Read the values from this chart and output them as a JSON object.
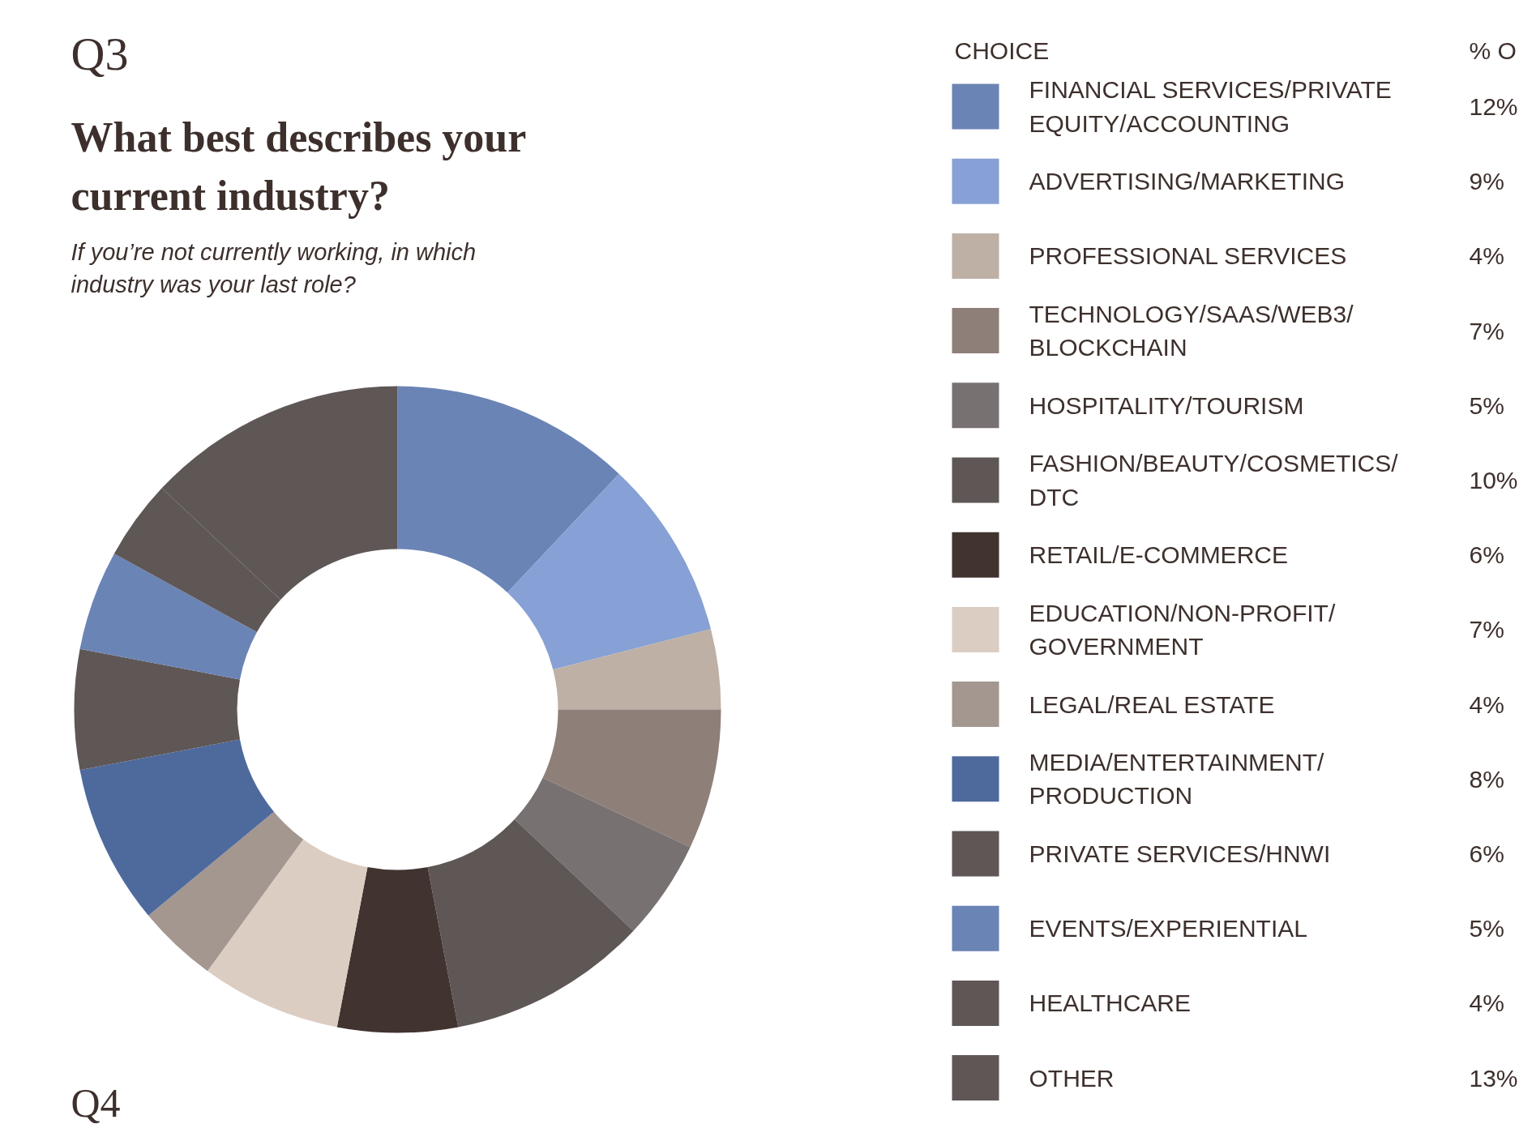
{
  "chart_data": {
    "type": "donut",
    "title": "What best describes your current industry?",
    "subtitle": "If you’re not currently working, in which industry was your last role?",
    "annotations": [
      "Q3",
      "% O",
      "Q4"
    ],
    "legend_title": "CHOICE",
    "legend": "right",
    "categories": [
      "FINANCIAL SERVICES/PRIVATE EQUITY/ACCOUNTING",
      "ADVERTISING/MARKETING",
      "PROFESSIONAL SERVICES",
      "TECHNOLOGY/SAAS/WEB3/BLOCKCHAIN",
      "HOSPITALITY/TOURISM",
      "FASHION/BEAUTY/COSMETICS/DTC",
      "RETAIL/E-COMMERCE",
      "EDUCATION/NON-PROFIT/GOVERNMENT",
      "LEGAL/REAL ESTATE",
      "MEDIA/ENTERTAINMENT/PRODUCTION",
      "PRIVATE SERVICES/HNWI",
      "EVENTS/EXPERIENTIAL",
      "HEALTHCARE",
      "OTHER"
    ],
    "values": [
      12,
      9,
      4,
      7,
      5,
      10,
      6,
      7,
      4,
      8,
      6,
      5,
      4,
      13
    ],
    "value_labels": [
      "12%",
      "9%",
      "4%",
      "7%",
      "5%",
      "10%",
      "6%",
      "7%",
      "4%",
      "8%",
      "6%",
      "5%",
      "4%",
      "13%"
    ],
    "colors": [
      "#6b84b6",
      "#87a0d5",
      "#beb0a5",
      "#8e7f78",
      "#787171",
      "#5e5756",
      "#41332f",
      "#dccdc2",
      "#a39790",
      "#4e6a9d",
      "#5e5756",
      "#6b84b6",
      "#5e5756",
      "#5e5756"
    ]
  }
}
